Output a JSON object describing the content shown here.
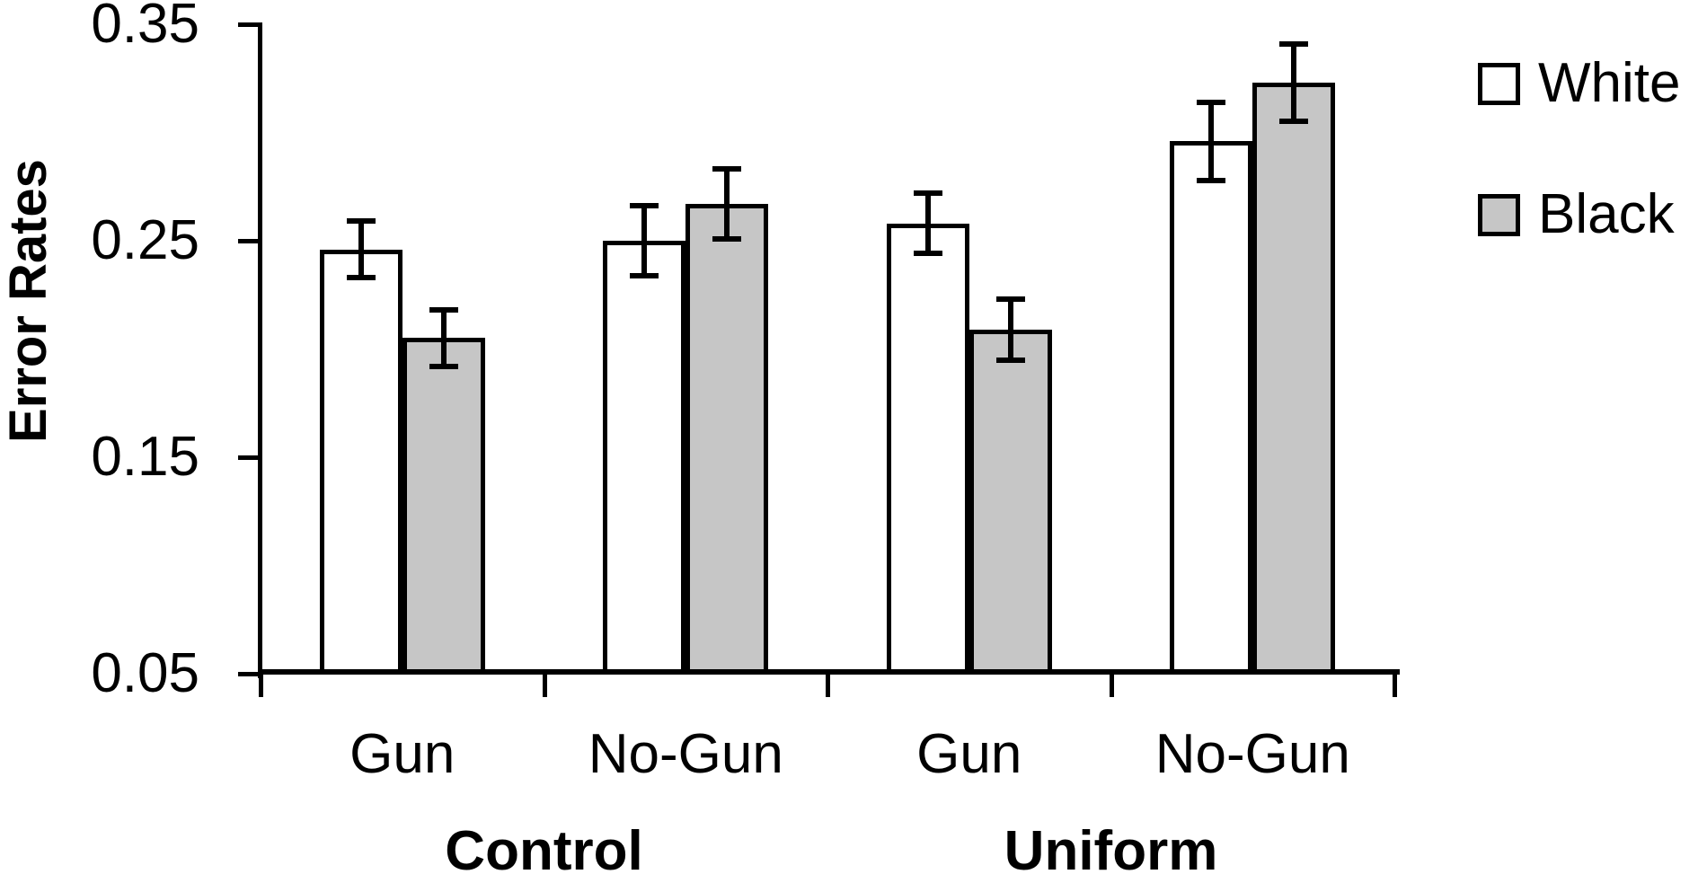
{
  "figure_title": "",
  "chart_data": {
    "type": "bar",
    "title": "",
    "xlabel": "",
    "ylabel": "Error Rates",
    "ylim": [
      0.05,
      0.35
    ],
    "yticks": [
      0.05,
      0.15,
      0.25,
      0.35
    ],
    "ytick_labels": [
      "0.05",
      "0.15",
      "0.25",
      "0.35"
    ],
    "grid": false,
    "legend_position": "right",
    "error_bars": true,
    "categories": [
      "Gun",
      "No-Gun",
      "Gun",
      "No-Gun"
    ],
    "groups": [
      {
        "label": "Control",
        "categories": [
          "Gun",
          "No-Gun"
        ]
      },
      {
        "label": "Uniform",
        "categories": [
          "Gun",
          "No-Gun"
        ]
      }
    ],
    "series": [
      {
        "name": "White",
        "fill": "#FFFFFF",
        "values": [
          0.246,
          0.25,
          0.258,
          0.296
        ],
        "errors": [
          0.013,
          0.016,
          0.014,
          0.018
        ]
      },
      {
        "name": "Black",
        "fill": "#C6C6C6",
        "values": [
          0.205,
          0.267,
          0.209,
          0.323
        ],
        "errors": [
          0.013,
          0.016,
          0.014,
          0.018
        ]
      }
    ]
  },
  "legend": {
    "items": [
      {
        "label": "White",
        "fill": "#FFFFFF"
      },
      {
        "label": "Black",
        "fill": "#C6C6C6"
      }
    ]
  },
  "colors": {
    "background": "#FFFFFF",
    "axis": "#000000",
    "bar_stroke": "#000000",
    "white_series_fill": "#FFFFFF",
    "black_series_fill": "#C6C6C6"
  }
}
